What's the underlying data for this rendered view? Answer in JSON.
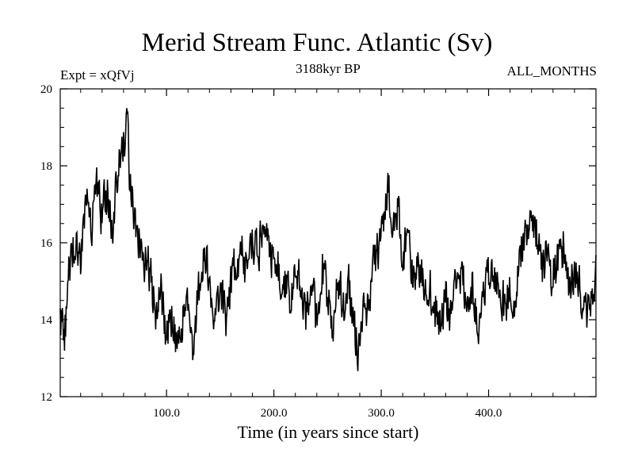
{
  "header": {
    "title": "Merid Stream Func. Atlantic (Sv)",
    "experiment": "Expt = xQfVj",
    "period": "3188kyr BP",
    "months": "ALL_MONTHS"
  },
  "chart_data": {
    "type": "line",
    "title": "Merid Stream Func. Atlantic (Sv)",
    "xlabel": "Time (in years since start)",
    "ylabel": "",
    "xlim": [
      1,
      500
    ],
    "ylim": [
      12,
      20
    ],
    "xticks": [
      100,
      200,
      300,
      400
    ],
    "xtick_labels": [
      "100.0",
      "200.0",
      "300.0",
      "400.0"
    ],
    "yticks": [
      12,
      14,
      16,
      18,
      20
    ],
    "ytick_labels": [
      "12",
      "14",
      "16",
      "18",
      "20"
    ],
    "grid": false,
    "series": [
      {
        "name": "Merid Stream Func. Atlantic",
        "color": "#000000",
        "x": [
          1,
          5,
          10,
          15,
          20,
          25,
          30,
          35,
          40,
          45,
          50,
          55,
          60,
          63,
          65,
          70,
          75,
          80,
          85,
          90,
          95,
          100,
          105,
          110,
          115,
          120,
          125,
          130,
          135,
          140,
          145,
          150,
          155,
          160,
          165,
          170,
          175,
          180,
          185,
          190,
          195,
          200,
          205,
          210,
          215,
          220,
          225,
          230,
          235,
          240,
          245,
          250,
          255,
          260,
          265,
          270,
          275,
          279,
          283,
          288,
          293,
          298,
          303,
          306,
          310,
          315,
          320,
          325,
          330,
          335,
          340,
          345,
          350,
          355,
          360,
          365,
          370,
          375,
          380,
          385,
          390,
          395,
          400,
          405,
          410,
          415,
          420,
          425,
          430,
          435,
          440,
          445,
          450,
          455,
          460,
          465,
          470,
          475,
          480,
          485,
          490,
          495,
          500
        ],
        "values": [
          14.0,
          13.6,
          15.5,
          16.2,
          15.6,
          17.0,
          16.5,
          17.3,
          16.7,
          17.2,
          16.5,
          18.0,
          18.6,
          19.4,
          18.0,
          16.8,
          16.0,
          15.5,
          15.2,
          14.2,
          14.6,
          13.6,
          14.2,
          13.2,
          14.1,
          14.6,
          13.3,
          14.8,
          15.8,
          15.0,
          14.3,
          14.8,
          14.0,
          14.9,
          15.5,
          15.8,
          15.2,
          16.3,
          15.6,
          16.4,
          15.9,
          15.6,
          15.3,
          15.0,
          14.5,
          15.2,
          14.9,
          14.2,
          14.8,
          14.0,
          15.4,
          14.6,
          13.8,
          15.0,
          14.2,
          14.8,
          13.9,
          13.0,
          14.5,
          14.2,
          15.3,
          15.9,
          16.8,
          17.6,
          16.4,
          16.9,
          15.6,
          16.2,
          15.1,
          15.5,
          14.6,
          14.9,
          14.3,
          13.9,
          14.5,
          14.0,
          14.8,
          15.2,
          14.4,
          14.9,
          13.9,
          14.6,
          15.3,
          14.8,
          15.2,
          14.3,
          15.0,
          14.4,
          15.8,
          16.3,
          16.9,
          16.2,
          15.4,
          15.8,
          15.1,
          15.6,
          16.0,
          14.8,
          15.4,
          14.9,
          13.9,
          14.6,
          15.2
        ]
      }
    ],
    "noise_amplitude": 0.55,
    "seed": 20230911,
    "samples": 1000
  }
}
